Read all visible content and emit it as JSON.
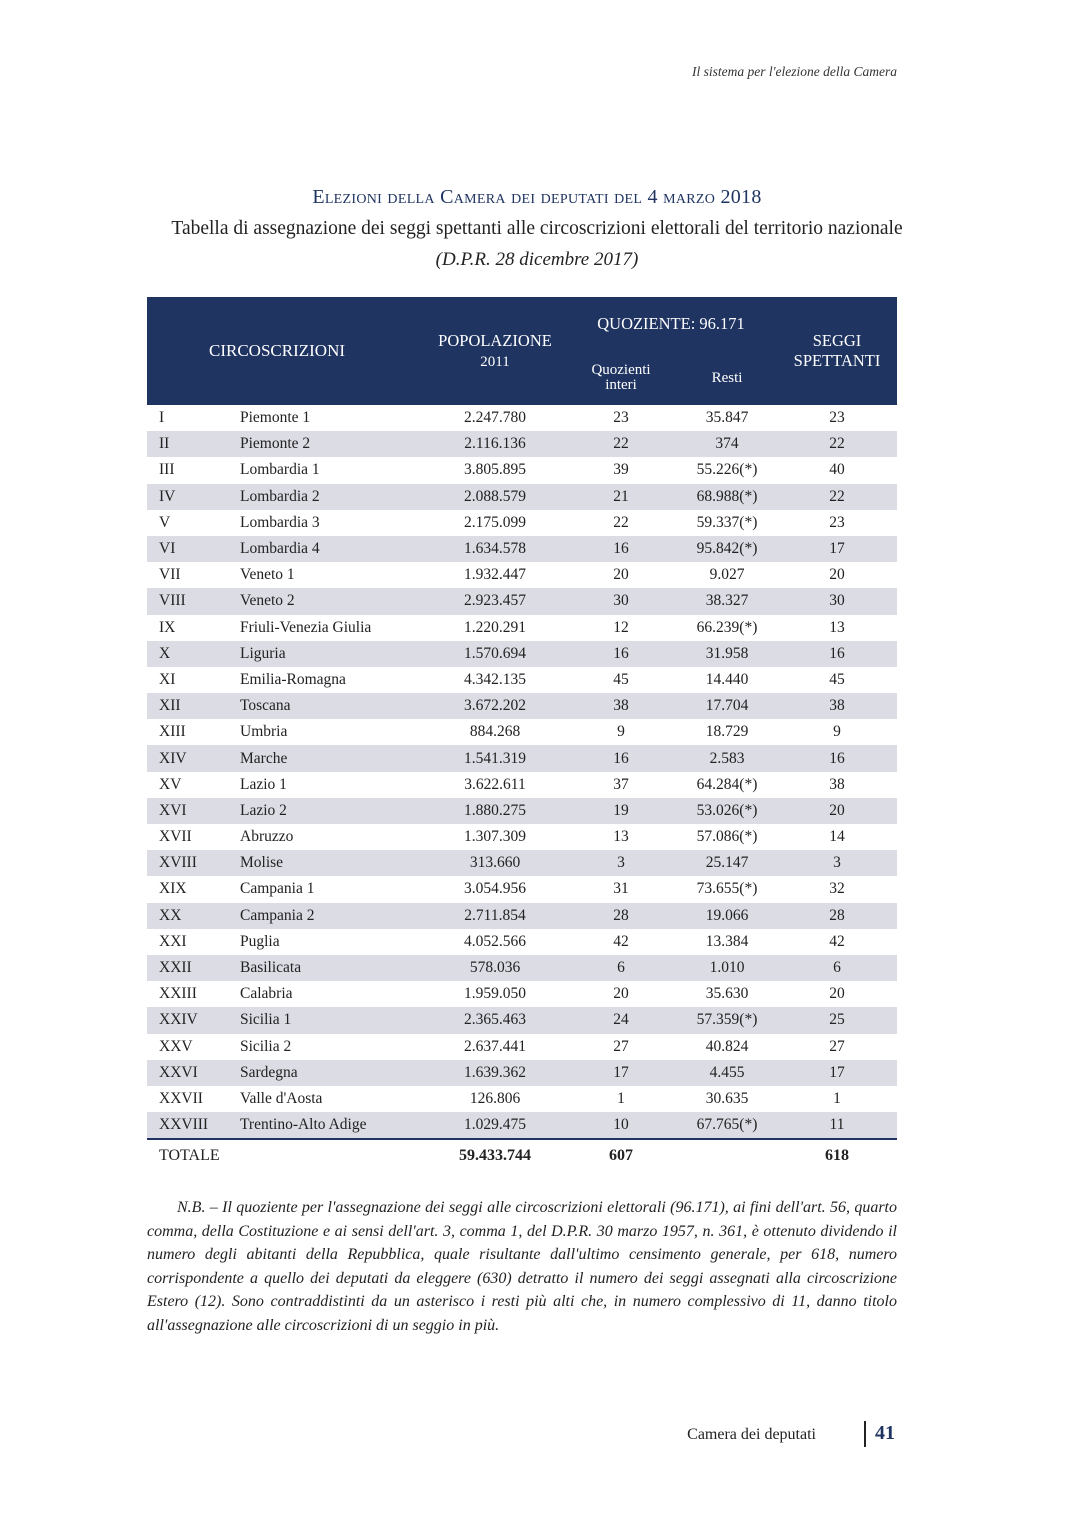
{
  "running_header": "Il sistema per l'elezione della Camera",
  "title": "Elezioni della Camera dei deputati del 4 marzo 2018",
  "subtitle": "Tabella di assegnazione dei seggi spettanti alle circoscrizioni elettorali del territorio nazionale",
  "subtitle2": "(D.P.R. 28 dicembre 2017)",
  "table": {
    "headers": {
      "circoscrizioni": "CIRCOSCRIZIONI",
      "popolazione": "POPOLAZIONE",
      "popolazione_year": "2011",
      "quoziente": "QUOZIENTE: 96.171",
      "quozienti_interi_1": "Quozienti",
      "quozienti_interi_2": "interi",
      "resti": "Resti",
      "seggi_1": "SEGGI",
      "seggi_2": "SPETTANTI"
    },
    "rows": [
      {
        "num": "I",
        "name": "Piemonte 1",
        "pop": "2.247.780",
        "quoz": "23",
        "resti": "35.847",
        "seggi": "23"
      },
      {
        "num": "II",
        "name": "Piemonte 2",
        "pop": "2.116.136",
        "quoz": "22",
        "resti": "374",
        "seggi": "22"
      },
      {
        "num": "III",
        "name": "Lombardia 1",
        "pop": "3.805.895",
        "quoz": "39",
        "resti": "55.226(*)",
        "seggi": "40"
      },
      {
        "num": "IV",
        "name": "Lombardia 2",
        "pop": "2.088.579",
        "quoz": "21",
        "resti": "68.988(*)",
        "seggi": "22"
      },
      {
        "num": "V",
        "name": "Lombardia 3",
        "pop": "2.175.099",
        "quoz": "22",
        "resti": "59.337(*)",
        "seggi": "23"
      },
      {
        "num": "VI",
        "name": "Lombardia 4",
        "pop": "1.634.578",
        "quoz": "16",
        "resti": "95.842(*)",
        "seggi": "17"
      },
      {
        "num": "VII",
        "name": "Veneto 1",
        "pop": "1.932.447",
        "quoz": "20",
        "resti": "9.027",
        "seggi": "20"
      },
      {
        "num": "VIII",
        "name": "Veneto 2",
        "pop": "2.923.457",
        "quoz": "30",
        "resti": "38.327",
        "seggi": "30"
      },
      {
        "num": "IX",
        "name": "Friuli-Venezia Giulia",
        "pop": "1.220.291",
        "quoz": "12",
        "resti": "66.239(*)",
        "seggi": "13"
      },
      {
        "num": "X",
        "name": "Liguria",
        "pop": "1.570.694",
        "quoz": "16",
        "resti": "31.958",
        "seggi": "16"
      },
      {
        "num": "XI",
        "name": "Emilia-Romagna",
        "pop": "4.342.135",
        "quoz": "45",
        "resti": "14.440",
        "seggi": "45"
      },
      {
        "num": "XII",
        "name": "Toscana",
        "pop": "3.672.202",
        "quoz": "38",
        "resti": "17.704",
        "seggi": "38"
      },
      {
        "num": "XIII",
        "name": "Umbria",
        "pop": "884.268",
        "quoz": "9",
        "resti": "18.729",
        "seggi": "9"
      },
      {
        "num": "XIV",
        "name": "Marche",
        "pop": "1.541.319",
        "quoz": "16",
        "resti": "2.583",
        "seggi": "16"
      },
      {
        "num": "XV",
        "name": "Lazio 1",
        "pop": "3.622.611",
        "quoz": "37",
        "resti": "64.284(*)",
        "seggi": "38"
      },
      {
        "num": "XVI",
        "name": "Lazio 2",
        "pop": "1.880.275",
        "quoz": "19",
        "resti": "53.026(*)",
        "seggi": "20"
      },
      {
        "num": "XVII",
        "name": "Abruzzo",
        "pop": "1.307.309",
        "quoz": "13",
        "resti": "57.086(*)",
        "seggi": "14"
      },
      {
        "num": "XVIII",
        "name": "Molise",
        "pop": "313.660",
        "quoz": "3",
        "resti": "25.147",
        "seggi": "3"
      },
      {
        "num": "XIX",
        "name": "Campania 1",
        "pop": "3.054.956",
        "quoz": "31",
        "resti": "73.655(*)",
        "seggi": "32"
      },
      {
        "num": "XX",
        "name": "Campania 2",
        "pop": "2.711.854",
        "quoz": "28",
        "resti": "19.066",
        "seggi": "28"
      },
      {
        "num": "XXI",
        "name": "Puglia",
        "pop": "4.052.566",
        "quoz": "42",
        "resti": "13.384",
        "seggi": "42"
      },
      {
        "num": "XXII",
        "name": "Basilicata",
        "pop": "578.036",
        "quoz": "6",
        "resti": "1.010",
        "seggi": "6"
      },
      {
        "num": "XXIII",
        "name": "Calabria",
        "pop": "1.959.050",
        "quoz": "20",
        "resti": "35.630",
        "seggi": "20"
      },
      {
        "num": "XXIV",
        "name": "Sicilia 1",
        "pop": "2.365.463",
        "quoz": "24",
        "resti": "57.359(*)",
        "seggi": "25"
      },
      {
        "num": "XXV",
        "name": "Sicilia 2",
        "pop": "2.637.441",
        "quoz": "27",
        "resti": "40.824",
        "seggi": "27"
      },
      {
        "num": "XXVI",
        "name": "Sardegna",
        "pop": "1.639.362",
        "quoz": "17",
        "resti": "4.455",
        "seggi": "17"
      },
      {
        "num": "XXVII",
        "name": "Valle d'Aosta",
        "pop": "126.806",
        "quoz": "1",
        "resti": "30.635",
        "seggi": "1"
      },
      {
        "num": "XXVIII",
        "name": "Trentino-Alto Adige",
        "pop": "1.029.475",
        "quoz": "10",
        "resti": "67.765(*)",
        "seggi": "11"
      }
    ],
    "total": {
      "label": "TOTALE",
      "pop": "59.433.744",
      "quoz": "607",
      "seggi": "618"
    }
  },
  "note": "N.B. – Il quoziente per l'assegnazione dei seggi alle circoscrizioni elettorali (96.171), ai fini dell'art. 56, quarto comma, della Costituzione e ai sensi dell'art. 3, comma 1, del D.P.R. 30 marzo 1957, n. 361, è ottenuto dividendo il numero degli abitanti della Repubblica, quale risultante dall'ultimo censimento generale, per 618, numero corrispondente a quello dei deputati da eleggere (630) detratto il numero dei seggi assegnati alla circoscrizione Estero (12). Sono contraddistinti da un asterisco i resti più alti che, in numero complessivo di 11, danno titolo all'assegnazione alle circoscrizioni di un seggio in più.",
  "footer": {
    "label": "Camera dei deputati",
    "page": "41"
  },
  "colors": {
    "header_bg": "#1f3461",
    "stripe": "#dcdce5"
  }
}
